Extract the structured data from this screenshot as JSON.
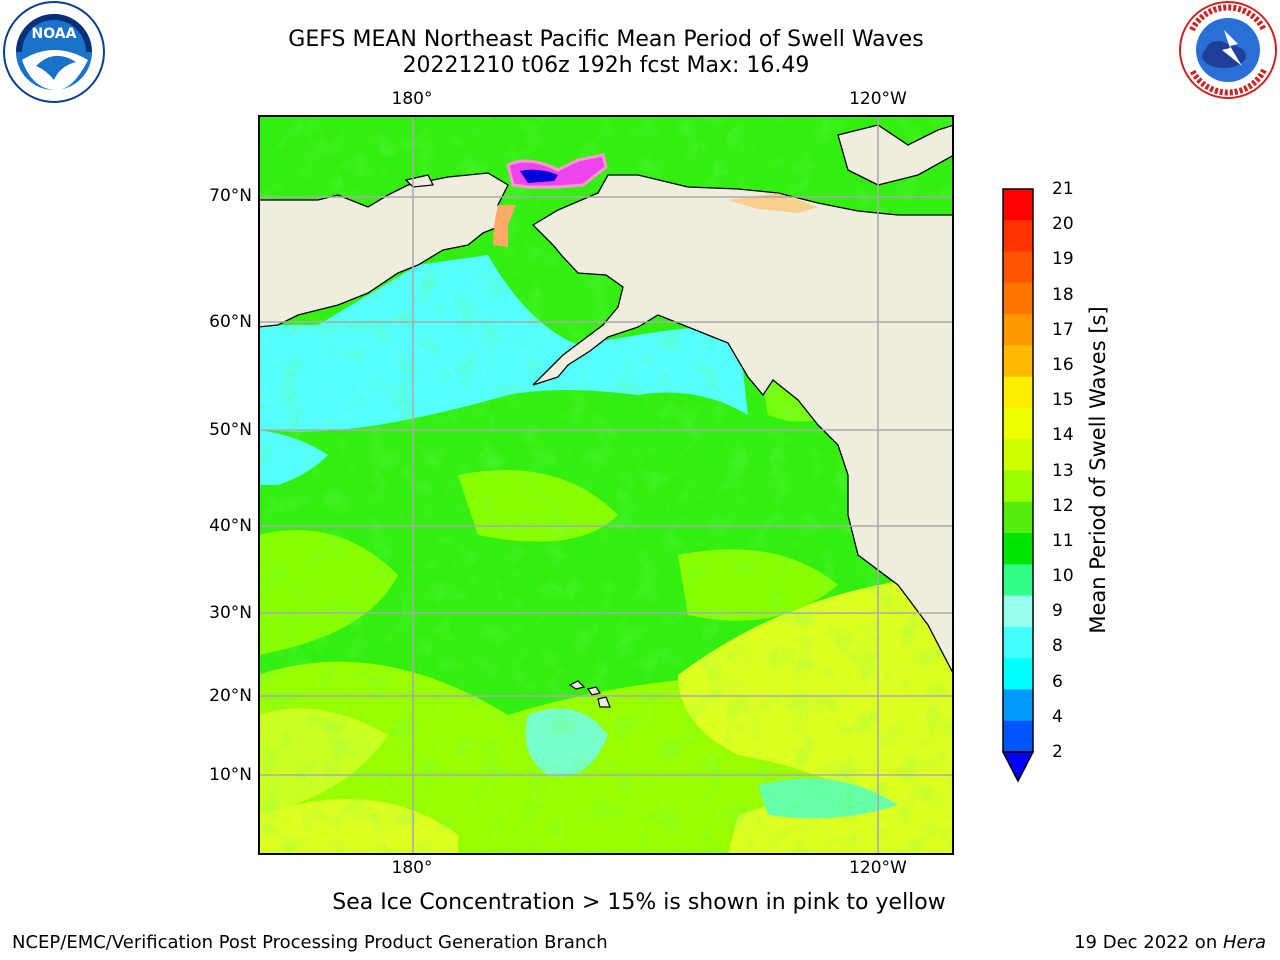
{
  "title_line1": "GEFS MEAN Northeast Pacific Mean Period of Swell Waves",
  "title_line2": "20221210 t06z 192h fcst   Max: 16.49",
  "lon_labels": {
    "top": [
      "180°",
      "120°W"
    ],
    "bottom": [
      "180°",
      "120°W"
    ]
  },
  "lat_labels": [
    "70°N",
    "60°N",
    "50°N",
    "40°N",
    "30°N",
    "20°N",
    "10°N"
  ],
  "colorbar": {
    "label": "Mean Period of Swell Waves [s]",
    "ticks": [
      "21",
      "20",
      "19",
      "18",
      "17",
      "16",
      "15",
      "14",
      "13",
      "12",
      "11",
      "10",
      "9",
      "8",
      "6",
      "4",
      "2"
    ],
    "colors": [
      "#ff0000",
      "#ff3300",
      "#ff5500",
      "#ff7700",
      "#ff9900",
      "#ffbb00",
      "#ffee00",
      "#eeff00",
      "#ccff00",
      "#99ff00",
      "#55ee11",
      "#00e600",
      "#33ff88",
      "#99ffee",
      "#44ffff",
      "#00ffff",
      "#0099ff",
      "#0055ff"
    ],
    "extend_color": "#0000ff"
  },
  "note": "Sea Ice Concentration > 15% is shown in pink to yellow",
  "footer_left": "NCEP/EMC/Verification Post Processing Product Generation Branch",
  "footer_right_date": "19 Dec 2022 on ",
  "footer_right_host": "Hera",
  "logos": {
    "left": "noaa-logo",
    "right": "nws-logo",
    "right_ring_text": "NATIONAL WEATHER SERVICE"
  },
  "map_colors": {
    "land": "#efedde",
    "ocean_main": "#22ee22",
    "ocean_light": "#88ff00",
    "ocean_yellow": "#ddff22",
    "ocean_cyan": "#55ffff",
    "grid": "#aaaaaa"
  },
  "max_value": 16.49
}
